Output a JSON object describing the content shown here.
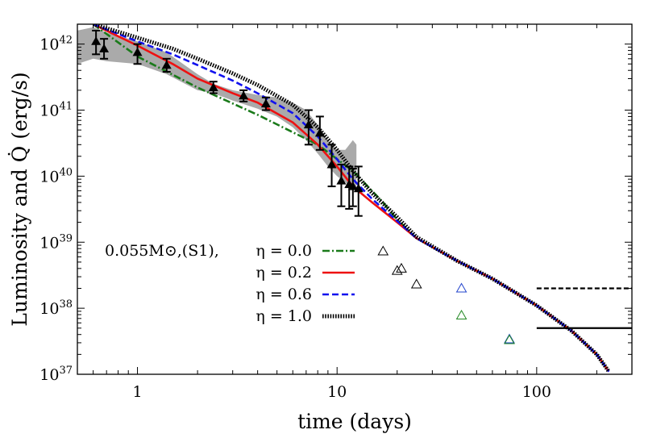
{
  "chart_data": {
    "type": "line",
    "xlabel": "time (days)",
    "ylabel": "Luminosity and Q̇ (erg/s)",
    "xscale": "log",
    "yscale": "log",
    "xlim": [
      0.5,
      300
    ],
    "ylim": [
      1e+37,
      2e+42
    ],
    "x_ticks": [
      {
        "value": 1,
        "label": "1"
      },
      {
        "value": 10,
        "label": "10"
      },
      {
        "value": 100,
        "label": "100"
      }
    ],
    "y_ticks": [
      {
        "value": 1e+37,
        "label": "10",
        "exp": "37"
      },
      {
        "value": 1e+38,
        "label": "10",
        "exp": "38"
      },
      {
        "value": 1e+39,
        "label": "10",
        "exp": "39"
      },
      {
        "value": 1e+40,
        "label": "10",
        "exp": "40"
      },
      {
        "value": 1e+41,
        "label": "10",
        "exp": "41"
      },
      {
        "value": 1e+42,
        "label": "10",
        "exp": "42"
      }
    ],
    "legend": {
      "placement": "center-left",
      "prefix": "0.055M⊙,(S1),",
      "entries": [
        {
          "label": "η = 0.0",
          "color": "#1a7a1a",
          "dash": "dashdot"
        },
        {
          "label": "η = 0.2",
          "color": "#ee1111",
          "dash": "solid"
        },
        {
          "label": "η = 0.6",
          "color": "#1111ee",
          "dash": "dashed"
        },
        {
          "label": "η = 1.0",
          "color": "#000000",
          "dash": "dotted"
        }
      ]
    },
    "series": [
      {
        "label": "η = 0.0",
        "color": "#1a7a1a",
        "x": [
          0.6,
          1.0,
          2.0,
          4.0,
          8.0,
          12.0,
          17.0,
          20.0,
          25.0,
          40.0,
          60.0,
          100.0,
          150.0,
          200.0,
          230.0
        ],
        "y": [
          2e+42,
          6.5e+41,
          2.2e+41,
          8.5e+40,
          3e+40,
          1.2e+40,
          4e+39,
          2.2e+39,
          1.15e+39,
          5.2e+38,
          2.8e+38,
          1.1e+38,
          4.5e+37,
          2e+37,
          1.1e+37
        ]
      },
      {
        "label": "η = 0.2",
        "color": "#ee1111",
        "x": [
          0.6,
          1.0,
          1.5,
          2.0,
          3.0,
          4.0,
          6.0,
          8.0,
          10.0,
          12.0,
          15.0,
          20.0,
          25.0,
          40.0,
          60.0,
          100.0,
          150.0,
          200.0,
          230.0
        ],
        "y": [
          2e+42,
          9.5e+41,
          5e+41,
          3e+41,
          1.8e+41,
          1.3e+41,
          6.5e+40,
          3e+40,
          1.4e+40,
          7e+39,
          4e+39,
          2e+39,
          1.15e+39,
          5.2e+38,
          2.8e+38,
          1.1e+38,
          4.5e+37,
          2e+37,
          1.1e+37
        ]
      },
      {
        "label": "η = 0.6",
        "color": "#1111ee",
        "x": [
          0.6,
          1.0,
          1.5,
          2.0,
          3.0,
          4.0,
          6.0,
          8.0,
          10.0,
          12.0,
          15.0,
          20.0,
          25.0,
          40.0,
          60.0,
          100.0,
          150.0,
          200.0,
          230.0
        ],
        "y": [
          2e+42,
          1.1e+42,
          7e+41,
          4.8e+41,
          2.8e+41,
          1.8e+41,
          9e+40,
          4e+40,
          1.8e+40,
          9e+39,
          4.5e+39,
          2.1e+39,
          1.15e+39,
          5.2e+38,
          2.8e+38,
          1.1e+38,
          4.5e+37,
          2e+37,
          1.1e+37
        ]
      },
      {
        "label": "η = 1.0",
        "color": "#000000",
        "x": [
          0.6,
          1.0,
          1.5,
          2.0,
          3.0,
          4.0,
          6.0,
          8.0,
          10.0,
          12.0,
          15.0,
          20.0,
          25.0,
          40.0,
          60.0,
          100.0,
          150.0,
          200.0,
          230.0
        ],
        "y": [
          2e+42,
          1.25e+42,
          8.5e+41,
          6e+41,
          3.6e+41,
          2.4e+41,
          1.2e+41,
          5.5e+40,
          2.5e+40,
          1.2e+40,
          5.5e+39,
          2.4e+39,
          1.2e+39,
          5.2e+38,
          2.8e+38,
          1.1e+38,
          4.5e+37,
          2e+37,
          1.1e+37
        ]
      }
    ],
    "observations": {
      "marker": "filled-triangle",
      "color": "#000000",
      "x": [
        0.62,
        0.68,
        1.0,
        1.4,
        2.4,
        3.4,
        4.4,
        7.2,
        8.2,
        9.4,
        10.5,
        11.5,
        12.0,
        12.8
      ],
      "y": [
        1.1e+42,
        8.5e+41,
        7.5e+41,
        4.8e+41,
        2.2e+41,
        1.65e+41,
        1.25e+41,
        6e+40,
        4.5e+40,
        1.5e+40,
        8.5e+39,
        7.5e+39,
        7e+39,
        6.5e+39
      ],
      "ylow": [
        7e+41,
        6e+41,
        5e+41,
        3.8e+41,
        1.8e+41,
        1.35e+41,
        1e+41,
        3e+40,
        2.5e+40,
        7e+39,
        3.5e+39,
        3.2e+39,
        3.5e+39,
        2.5e+39
      ],
      "yhigh": [
        1.6e+42,
        1.2e+42,
        1e+42,
        6e+41,
        2.7e+41,
        2e+41,
        1.55e+41,
        1e+41,
        8e+40,
        3e+40,
        1.5e+40,
        1.4e+40,
        1.3e+40,
        1.4e+40
      ]
    },
    "uncertainty_band": {
      "color": "#aaaaaa",
      "x": [
        0.5,
        0.6,
        0.7,
        1.0,
        1.4,
        2.0,
        2.4,
        3.0,
        4.0,
        5.0,
        6.0,
        7.0,
        8.0,
        9.0,
        10.0,
        11.0,
        12.0,
        12.5
      ],
      "upper": [
        1.6e+42,
        1.8e+42,
        1.5e+42,
        1.1e+42,
        7.5e+41,
        3.5e+41,
        2.5e+41,
        2e+41,
        1.7e+41,
        1.55e+41,
        1.3e+41,
        1e+41,
        6e+40,
        3.5e+40,
        2.5e+40,
        2.5e+40,
        3.5e+40,
        3e+40
      ],
      "lower": [
        5e+41,
        6e+41,
        5.5e+41,
        5e+41,
        3.5e+41,
        2e+41,
        1.8e+41,
        1.4e+41,
        1.05e+41,
        8e+40,
        5.5e+40,
        3.5e+40,
        2.2e+40,
        1.4e+40,
        1e+40,
        8e+39,
        6.5e+39,
        6e+39
      ]
    },
    "open_triangles": [
      {
        "x": 17.0,
        "y": 7.3e+38,
        "color": "#000000"
      },
      {
        "x": 20.0,
        "y": 3.7e+38,
        "color": "#000000"
      },
      {
        "x": 21.0,
        "y": 4e+38,
        "color": "#000000"
      },
      {
        "x": 25.0,
        "y": 2.3e+38,
        "color": "#000000"
      },
      {
        "x": 42.0,
        "y": 2e+38,
        "color": "#2244cc"
      },
      {
        "x": 42.0,
        "y": 7.8e+37,
        "color": "#228822"
      },
      {
        "x": 73.0,
        "y": 3.4e+37,
        "color": "#2244cc"
      },
      {
        "x": 73.0,
        "y": 3.3e+37,
        "color": "#228822"
      }
    ],
    "horizontal_lines": [
      {
        "y": 2e+38,
        "x_start": 100,
        "x_end": 300,
        "color": "#000000",
        "dash": "dashed"
      },
      {
        "y": 5e+37,
        "x_start": 100,
        "x_end": 300,
        "color": "#000000",
        "dash": "solid"
      }
    ]
  }
}
